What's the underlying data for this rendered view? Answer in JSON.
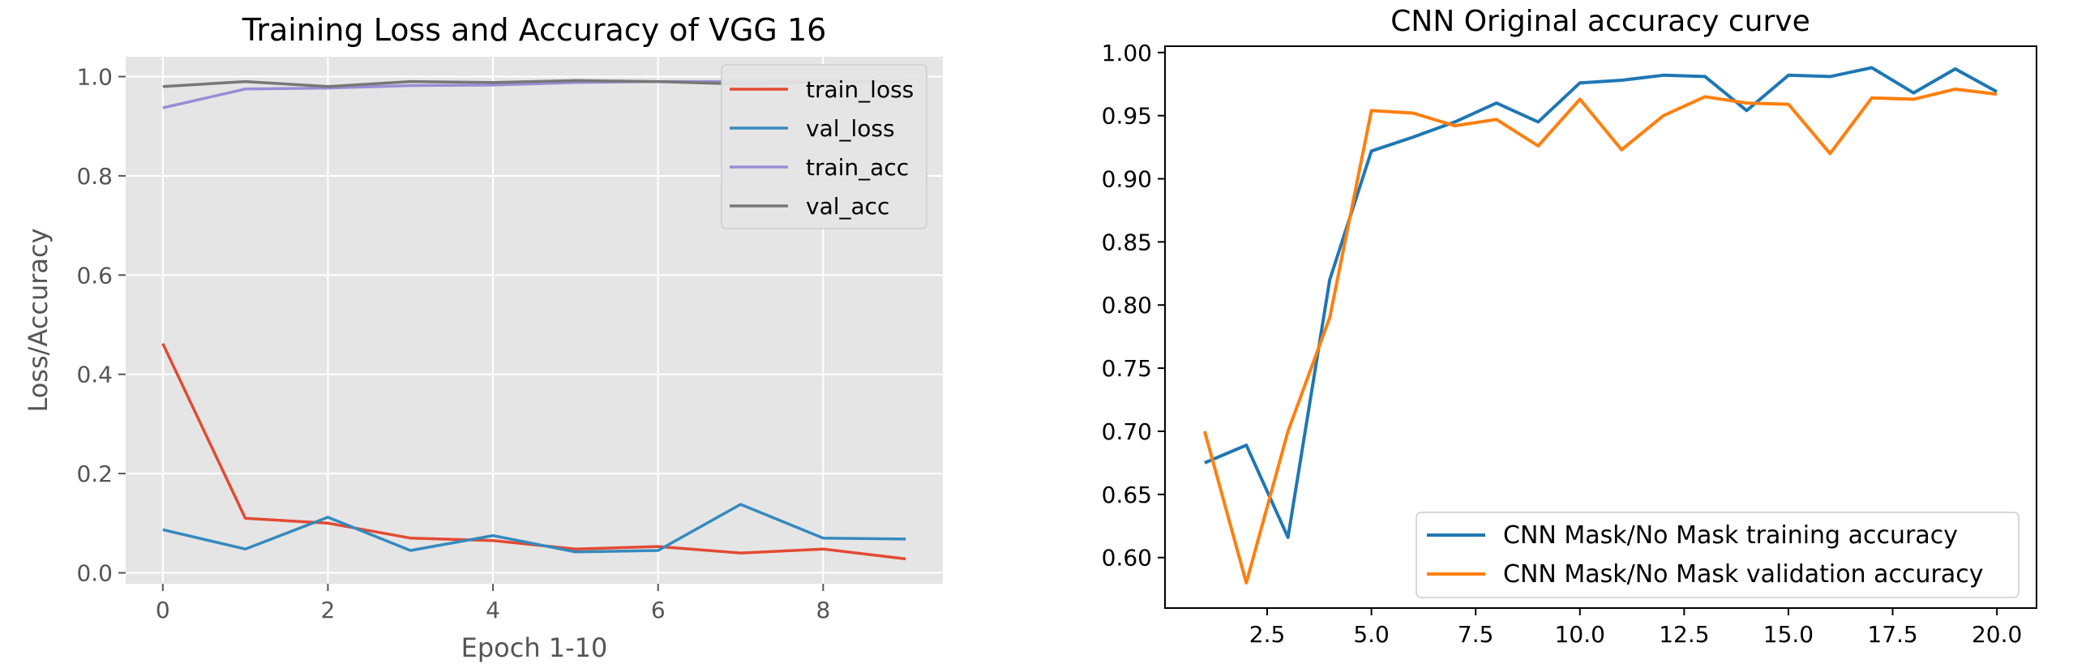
{
  "chart_data": [
    {
      "type": "line",
      "title": "Training Loss and Accuracy of VGG 16",
      "xlabel": "Epoch 1-10",
      "ylabel": "Loss/Accuracy",
      "xlim": [
        -0.45,
        9.45
      ],
      "ylim": [
        -0.022,
        1.04
      ],
      "xticks": [
        0,
        2,
        4,
        6,
        8
      ],
      "xtick_labels": [
        "0",
        "2",
        "4",
        "6",
        "8"
      ],
      "yticks": [
        0.0,
        0.2,
        0.4,
        0.6,
        0.8,
        1.0
      ],
      "ytick_labels": [
        "0.0",
        "0.2",
        "0.4",
        "0.6",
        "0.8",
        "1.0"
      ],
      "grid": true,
      "legend_position": "top-right",
      "x": [
        0,
        1,
        2,
        3,
        4,
        5,
        6,
        7,
        8,
        9
      ],
      "series": [
        {
          "name": "train_loss",
          "color": "#E24A33",
          "values": [
            0.462,
            0.11,
            0.1,
            0.07,
            0.065,
            0.048,
            0.053,
            0.04,
            0.048,
            0.028
          ]
        },
        {
          "name": "val_loss",
          "color": "#348ABD",
          "values": [
            0.087,
            0.048,
            0.112,
            0.045,
            0.075,
            0.042,
            0.045,
            0.138,
            0.07,
            0.068
          ]
        },
        {
          "name": "train_acc",
          "color": "#988ED5",
          "values": [
            0.937,
            0.975,
            0.977,
            0.982,
            0.983,
            0.988,
            0.99,
            0.99,
            0.99,
            0.992
          ]
        },
        {
          "name": "val_acc",
          "color": "#777777",
          "values": [
            0.98,
            0.99,
            0.98,
            0.99,
            0.988,
            0.992,
            0.99,
            0.985,
            0.99,
            0.99
          ]
        }
      ]
    },
    {
      "type": "line",
      "title": "CNN Original accuracy curve",
      "xlabel": "",
      "ylabel": "",
      "xlim": [
        0.05,
        20.95
      ],
      "ylim": [
        0.56,
        1.005
      ],
      "xticks": [
        2.5,
        5.0,
        7.5,
        10.0,
        12.5,
        15.0,
        17.5,
        20.0
      ],
      "xtick_labels": [
        "2.5",
        "5.0",
        "7.5",
        "10.0",
        "12.5",
        "15.0",
        "17.5",
        "20.0"
      ],
      "yticks": [
        0.6,
        0.65,
        0.7,
        0.75,
        0.8,
        0.85,
        0.9,
        0.95,
        1.0
      ],
      "ytick_labels": [
        "0.60",
        "0.65",
        "0.70",
        "0.75",
        "0.80",
        "0.85",
        "0.90",
        "0.95",
        "1.00"
      ],
      "grid": false,
      "legend_position": "lower-right",
      "x": [
        1,
        2,
        3,
        4,
        5,
        6,
        7,
        8,
        9,
        10,
        11,
        12,
        13,
        14,
        15,
        16,
        17,
        18,
        19,
        20
      ],
      "series": [
        {
          "name": "CNN Mask/No Mask training accuracy",
          "color": "#1F77B4",
          "values": [
            0.675,
            0.689,
            0.616,
            0.82,
            0.922,
            0.933,
            0.945,
            0.96,
            0.945,
            0.976,
            0.978,
            0.982,
            0.981,
            0.954,
            0.982,
            0.981,
            0.988,
            0.968,
            0.987,
            0.969
          ]
        },
        {
          "name": "CNN Mask/No Mask validation accuracy",
          "color": "#FF7F0E",
          "values": [
            0.7,
            0.58,
            0.7,
            0.79,
            0.954,
            0.952,
            0.942,
            0.947,
            0.926,
            0.963,
            0.923,
            0.95,
            0.965,
            0.96,
            0.959,
            0.92,
            0.964,
            0.963,
            0.971,
            0.967
          ]
        }
      ]
    }
  ]
}
